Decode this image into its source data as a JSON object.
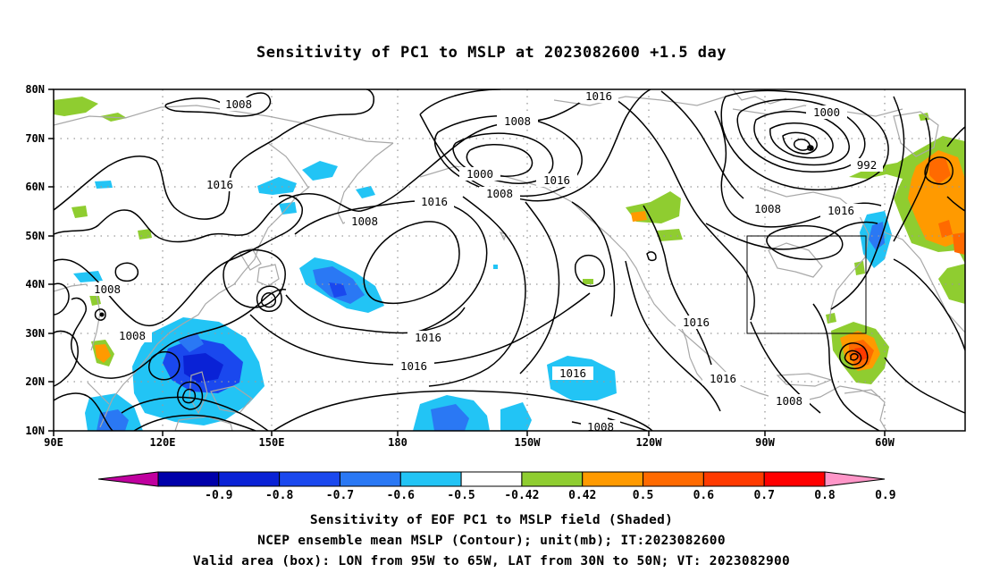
{
  "title": "Sensitivity of PC1 to MSLP at 2023082600 +1.5 day",
  "map": {
    "lat_labels": [
      "80N",
      "70N",
      "60N",
      "50N",
      "40N",
      "30N",
      "20N",
      "10N"
    ],
    "lon_labels": [
      "90E",
      "120E",
      "150E",
      "180",
      "150W",
      "120W",
      "90W",
      "60W"
    ],
    "valid_box": {
      "lon_from": "95W",
      "lon_to": "65W",
      "lat_from": "30N",
      "lat_to": "50N"
    },
    "contour_labels": [
      "1008",
      "1016",
      "1008",
      "1016",
      "1000",
      "1008",
      "1016",
      "1008",
      "1016",
      "1000",
      "992",
      "1008",
      "1016",
      "1008",
      "1008",
      "1016",
      "1016",
      "1016",
      "1016",
      "1016",
      "1008",
      "1008"
    ]
  },
  "colorbar": {
    "ticks": [
      "-0.9",
      "-0.8",
      "-0.7",
      "-0.6",
      "-0.5",
      "-0.42",
      "0.42",
      "0.5",
      "0.6",
      "0.7",
      "0.8",
      "0.9"
    ],
    "colors": [
      "#c0009f",
      "#0000aa",
      "#0a22d6",
      "#1a48ee",
      "#2a78f4",
      "#22c4f5",
      "#ffffff",
      "#8fcd30",
      "#ff9a00",
      "#ff6a00",
      "#ff3a00",
      "#ff0000",
      "#ff96c8"
    ]
  },
  "captions": {
    "line1": "Sensitivity of EOF PC1 to MSLP field (Shaded)",
    "line2": "NCEP ensemble mean MSLP (Contour); unit(mb); IT:2023082600",
    "line3": "Valid area (box): LON from 95W to 65W, LAT from 30N to 50N; VT: 2023082900"
  }
}
